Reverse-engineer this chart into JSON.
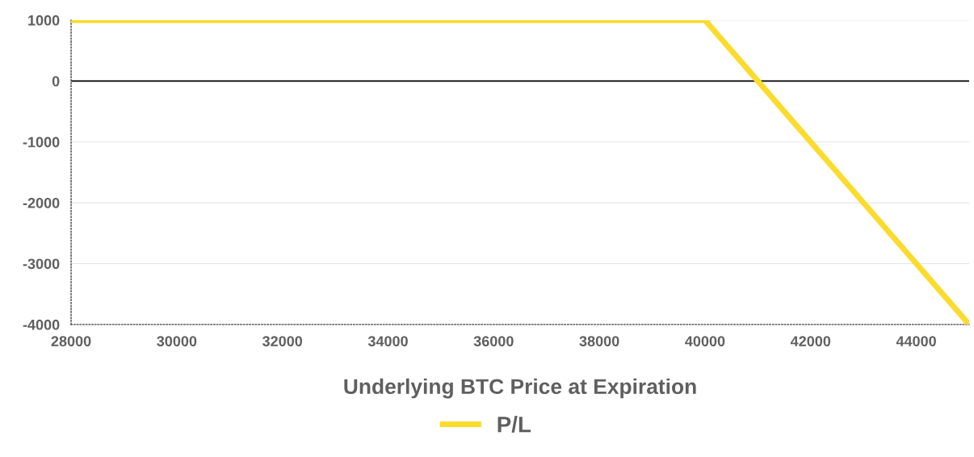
{
  "chart_data": {
    "type": "line",
    "xlabel": "Underlying BTC Price at Expiration",
    "series": [
      {
        "name": "P/L",
        "color": "#fbdb2e",
        "x": [
          28000,
          40000,
          45000
        ],
        "values": [
          1000,
          1000,
          -4000
        ]
      }
    ],
    "xlim": [
      28000,
      45000
    ],
    "xticks": [
      28000,
      30000,
      32000,
      34000,
      36000,
      38000,
      40000,
      42000,
      44000
    ],
    "ylim": [
      -4000,
      1000
    ],
    "yticks": [
      -4000,
      -3000,
      -2000,
      -1000,
      0,
      1000
    ],
    "ref_lines": [
      {
        "axis": "y",
        "value": 0,
        "color": "#000000"
      }
    ],
    "grid": "y",
    "legend": "bottom",
    "marker": "none",
    "line_style": "solid"
  }
}
